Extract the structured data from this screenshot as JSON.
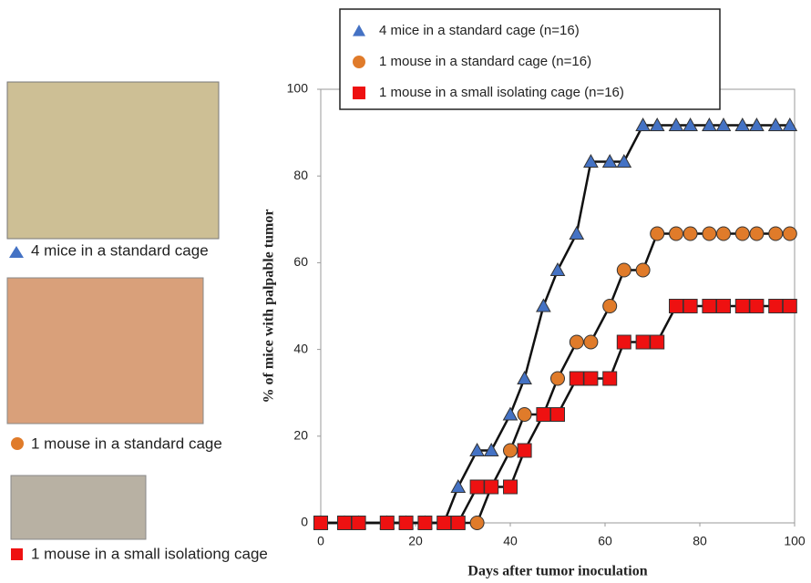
{
  "photo_captions": [
    "4 mice in a standard cage",
    "1 mouse in a standard cage",
    "1 mouse in a small isolationg cage"
  ],
  "chart_data": {
    "type": "line",
    "x_label": "Days after tumor inoculation",
    "y_label": "% of mice with palpable tumor",
    "x": [
      0,
      5,
      8,
      14,
      18,
      22,
      26,
      29,
      33,
      36,
      40,
      43,
      47,
      50,
      54,
      57,
      61,
      64,
      68,
      71,
      75,
      78,
      82,
      85,
      89,
      92,
      96,
      99
    ],
    "series": [
      {
        "name": "4 mice in a standard cage (n=16)",
        "color": "#4472c4",
        "marker": "triangle",
        "values": [
          0,
          0,
          0,
          0,
          0,
          0,
          0,
          8.3,
          16.7,
          16.7,
          25,
          33.3,
          50,
          58.3,
          66.7,
          83.3,
          83.3,
          83.3,
          91.7,
          91.7,
          91.7,
          91.7,
          91.7,
          91.7,
          91.7,
          91.7,
          91.7,
          91.7
        ]
      },
      {
        "name": "1 mouse in a standard cage (n=16)",
        "color": "#e07b2a",
        "marker": "circle",
        "values": [
          0,
          0,
          0,
          0,
          0,
          0,
          0,
          0,
          0,
          8.3,
          16.7,
          25,
          25,
          33.3,
          41.7,
          41.7,
          50,
          58.3,
          58.3,
          66.7,
          66.7,
          66.7,
          66.7,
          66.7,
          66.7,
          66.7,
          66.7,
          66.7
        ]
      },
      {
        "name": "1 mouse in a small isolating cage (n=16)",
        "color": "#ee1111",
        "marker": "square",
        "values": [
          0,
          0,
          0,
          0,
          0,
          0,
          0,
          0,
          8.3,
          8.3,
          8.3,
          16.7,
          25,
          25,
          33.3,
          33.3,
          33.3,
          41.7,
          41.7,
          41.7,
          50,
          50,
          50,
          50,
          50,
          50,
          50,
          50
        ]
      }
    ],
    "xlim": [
      0,
      100
    ],
    "xticks": [
      0,
      20,
      40,
      60,
      80,
      100
    ],
    "ylim": [
      0,
      100
    ],
    "yticks": [
      0,
      20,
      40,
      60,
      80,
      100
    ],
    "grid": false,
    "legend": "top"
  }
}
